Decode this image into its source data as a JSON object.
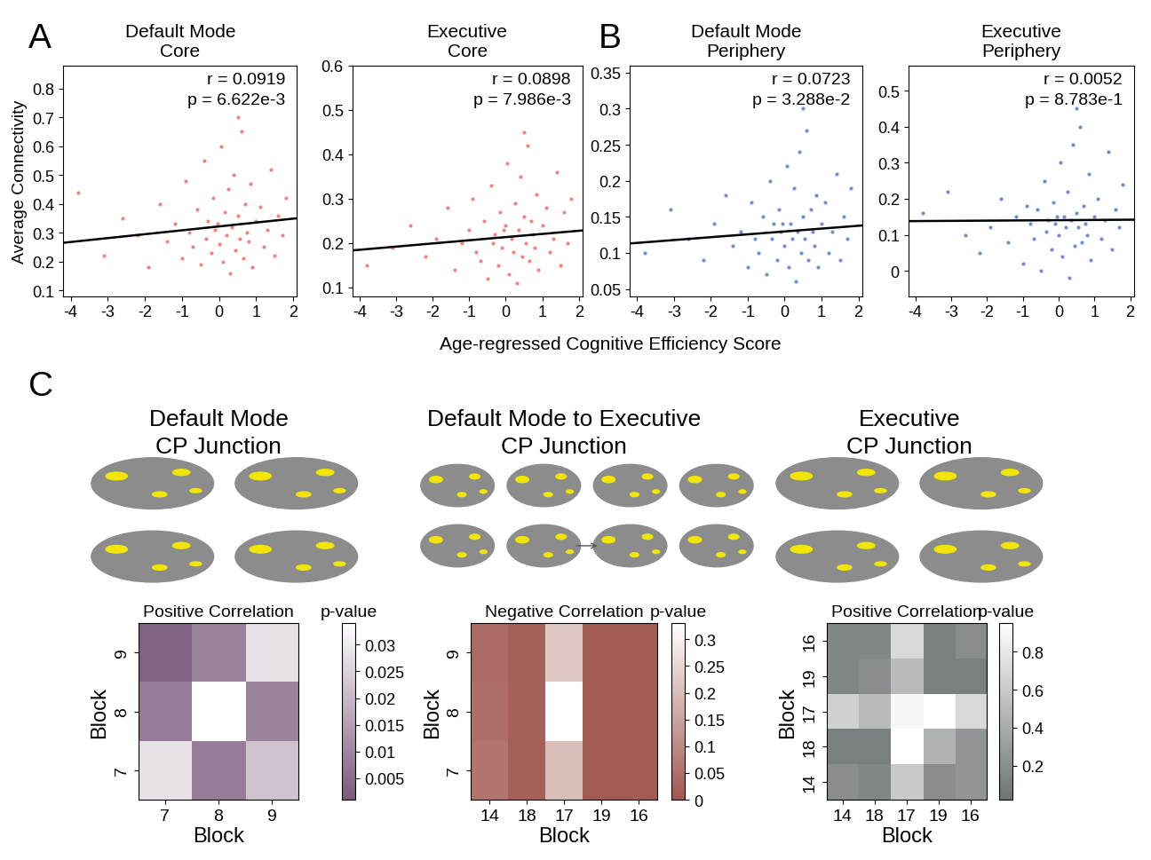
{
  "figure": {
    "xlabel": "Age-regressed Cognitive Efficiency Score"
  },
  "chart_data": [
    {
      "type": "scatter",
      "panel_label": "A",
      "title": "Default Mode\nCore",
      "ylabel": "Average Connectivity",
      "color": "#f4837d",
      "x": [
        -3.8,
        -3.1,
        -2.6,
        -2.2,
        -1.9,
        -1.6,
        -1.4,
        -1.2,
        -1.0,
        -0.9,
        -0.8,
        -0.7,
        -0.6,
        -0.5,
        -0.4,
        -0.35,
        -0.3,
        -0.2,
        -0.15,
        -0.1,
        0.0,
        0.05,
        0.1,
        0.15,
        0.2,
        0.25,
        0.3,
        0.35,
        0.4,
        0.45,
        0.5,
        0.55,
        0.6,
        0.65,
        0.7,
        0.75,
        0.8,
        0.85,
        0.9,
        1.0,
        1.1,
        1.2,
        1.3,
        1.4,
        1.5,
        1.6,
        1.7,
        1.8,
        -0.05,
        0.5
      ],
      "values": [
        0.44,
        0.22,
        0.35,
        0.29,
        0.18,
        0.4,
        0.27,
        0.33,
        0.21,
        0.48,
        0.3,
        0.25,
        0.38,
        0.19,
        0.55,
        0.28,
        0.34,
        0.23,
        0.42,
        0.31,
        0.26,
        0.6,
        0.2,
        0.37,
        0.29,
        0.45,
        0.16,
        0.32,
        0.5,
        0.24,
        0.36,
        0.28,
        0.65,
        0.21,
        0.4,
        0.3,
        0.27,
        0.47,
        0.18,
        0.34,
        0.39,
        0.25,
        0.31,
        0.52,
        0.22,
        0.36,
        0.29,
        0.42,
        0.33,
        0.7
      ],
      "fit": {
        "x": [
          -4.2,
          2.1
        ],
        "y": [
          0.265,
          0.35
        ]
      },
      "annotations": [
        "r = 0.0919",
        "p = 6.622e-3"
      ],
      "xlim": [
        -4.2,
        2.1
      ],
      "xticks": [
        -4,
        -3,
        -2,
        -1,
        0,
        1,
        2
      ],
      "ylim": [
        0.08,
        0.88
      ],
      "yticks": [
        0.1,
        0.2,
        0.3,
        0.4,
        0.5,
        0.6,
        0.7,
        0.8
      ]
    },
    {
      "type": "scatter",
      "title": "Executive\nCore",
      "color": "#f4837d",
      "x": [
        -3.8,
        -3.1,
        -2.6,
        -2.2,
        -1.9,
        -1.6,
        -1.4,
        -1.2,
        -1.0,
        -0.9,
        -0.8,
        -0.7,
        -0.6,
        -0.5,
        -0.4,
        -0.35,
        -0.3,
        -0.2,
        -0.15,
        -0.1,
        0.0,
        0.05,
        0.1,
        0.15,
        0.2,
        0.25,
        0.3,
        0.35,
        0.4,
        0.45,
        0.5,
        0.55,
        0.6,
        0.65,
        0.7,
        0.75,
        0.8,
        0.85,
        0.9,
        1.0,
        1.1,
        1.2,
        1.3,
        1.4,
        1.5,
        1.6,
        1.7,
        1.8,
        -0.05,
        0.5
      ],
      "values": [
        0.15,
        0.19,
        0.24,
        0.17,
        0.21,
        0.28,
        0.14,
        0.2,
        0.23,
        0.3,
        0.18,
        0.16,
        0.25,
        0.12,
        0.33,
        0.2,
        0.22,
        0.15,
        0.27,
        0.19,
        0.24,
        0.38,
        0.13,
        0.21,
        0.18,
        0.29,
        0.11,
        0.23,
        0.35,
        0.17,
        0.26,
        0.2,
        0.42,
        0.16,
        0.25,
        0.22,
        0.19,
        0.31,
        0.14,
        0.24,
        0.28,
        0.18,
        0.21,
        0.36,
        0.15,
        0.27,
        0.2,
        0.3,
        0.23,
        0.45
      ],
      "fit": {
        "x": [
          -4.2,
          2.1
        ],
        "y": [
          0.183,
          0.228
        ]
      },
      "annotations": [
        "r = 0.0898",
        "p = 7.986e-3"
      ],
      "xlim": [
        -4.2,
        2.1
      ],
      "xticks": [
        -4,
        -3,
        -2,
        -1,
        0,
        1,
        2
      ],
      "ylim": [
        0.08,
        0.6
      ],
      "yticks": [
        0.1,
        0.2,
        0.3,
        0.4,
        0.5,
        0.6
      ]
    },
    {
      "type": "scatter",
      "panel_label": "B",
      "title": "Default Mode\nPeriphery",
      "color": "#6f8fcf",
      "x": [
        -3.8,
        -3.1,
        -2.6,
        -2.2,
        -1.9,
        -1.6,
        -1.4,
        -1.2,
        -1.0,
        -0.9,
        -0.8,
        -0.7,
        -0.6,
        -0.5,
        -0.4,
        -0.35,
        -0.3,
        -0.2,
        -0.15,
        -0.1,
        0.0,
        0.05,
        0.1,
        0.15,
        0.2,
        0.25,
        0.3,
        0.35,
        0.4,
        0.45,
        0.5,
        0.55,
        0.6,
        0.65,
        0.7,
        0.75,
        0.8,
        0.85,
        0.9,
        1.0,
        1.1,
        1.2,
        1.3,
        1.4,
        1.5,
        1.6,
        1.7,
        1.8,
        -0.05,
        0.5
      ],
      "values": [
        0.1,
        0.16,
        0.12,
        0.09,
        0.14,
        0.18,
        0.11,
        0.13,
        0.08,
        0.17,
        0.12,
        0.1,
        0.15,
        0.07,
        0.2,
        0.12,
        0.14,
        0.09,
        0.16,
        0.13,
        0.11,
        0.22,
        0.08,
        0.14,
        0.12,
        0.19,
        0.06,
        0.13,
        0.24,
        0.1,
        0.15,
        0.12,
        0.27,
        0.09,
        0.16,
        0.13,
        0.11,
        0.18,
        0.08,
        0.14,
        0.17,
        0.1,
        0.13,
        0.21,
        0.09,
        0.15,
        0.12,
        0.19,
        0.14,
        0.3
      ],
      "fit": {
        "x": [
          -4.2,
          2.1
        ],
        "y": [
          0.113,
          0.138
        ]
      },
      "annotations": [
        "r = 0.0723",
        "p = 3.288e-2"
      ],
      "xlim": [
        -4.2,
        2.1
      ],
      "xticks": [
        -4,
        -3,
        -2,
        -1,
        0,
        1,
        2
      ],
      "ylim": [
        0.04,
        0.36
      ],
      "yticks": [
        0.05,
        0.1,
        0.15,
        0.2,
        0.25,
        0.3,
        0.35
      ]
    },
    {
      "type": "scatter",
      "title": "Executive\nPeriphery",
      "color": "#6f8fcf",
      "x": [
        -3.8,
        -3.1,
        -2.6,
        -2.2,
        -1.9,
        -1.6,
        -1.4,
        -1.2,
        -1.0,
        -0.9,
        -0.8,
        -0.7,
        -0.6,
        -0.5,
        -0.4,
        -0.35,
        -0.3,
        -0.2,
        -0.15,
        -0.1,
        0.0,
        0.05,
        0.1,
        0.15,
        0.2,
        0.25,
        0.3,
        0.35,
        0.4,
        0.45,
        0.5,
        0.55,
        0.6,
        0.65,
        0.7,
        0.75,
        0.8,
        0.85,
        0.9,
        1.0,
        1.1,
        1.2,
        1.3,
        1.4,
        1.5,
        1.6,
        1.7,
        1.8,
        -0.05,
        0.5
      ],
      "values": [
        0.16,
        0.22,
        0.1,
        0.05,
        0.12,
        0.2,
        0.08,
        0.15,
        0.02,
        0.18,
        0.13,
        0.09,
        0.17,
        0.0,
        0.25,
        0.11,
        0.14,
        0.06,
        0.19,
        0.13,
        0.1,
        0.3,
        0.04,
        0.15,
        0.12,
        0.22,
        -0.02,
        0.14,
        0.35,
        0.07,
        0.16,
        0.12,
        0.4,
        0.08,
        0.18,
        0.13,
        0.1,
        0.27,
        0.03,
        0.15,
        0.2,
        0.09,
        0.14,
        0.33,
        0.06,
        0.17,
        0.12,
        0.24,
        0.15,
        0.45
      ],
      "fit": {
        "x": [
          -4.2,
          2.1
        ],
        "y": [
          0.138,
          0.142
        ]
      },
      "annotations": [
        "r = 0.0052",
        "p = 8.783e-1"
      ],
      "xlim": [
        -4.2,
        2.1
      ],
      "xticks": [
        -4,
        -3,
        -2,
        -1,
        0,
        1,
        2
      ],
      "ylim": [
        -0.07,
        0.57
      ],
      "yticks": [
        0,
        0.1,
        0.2,
        0.3,
        0.4,
        0.5
      ]
    },
    {
      "type": "heatmap",
      "panel_label": "C",
      "title": "Default Mode\nCP Junction",
      "subtitle": "Positive Correlation",
      "xlabel": "Block",
      "ylabel": "Block",
      "color": "#7a5a7a",
      "x_categories": [
        "7",
        "8",
        "9"
      ],
      "y_categories": [
        "9",
        "8",
        "7"
      ],
      "cells": [
        [
          0.003,
          0.009,
          0.028
        ],
        [
          0.008,
          0.034,
          0.009
        ],
        [
          0.028,
          0.008,
          0.022
        ]
      ],
      "colorbar": {
        "label": "p-value",
        "range": [
          0.001,
          0.034
        ],
        "ticks": [
          0.005,
          0.01,
          0.015,
          0.02,
          0.025,
          0.03
        ]
      }
    },
    {
      "type": "heatmap",
      "title": "Default Mode to Executive\nCP Junction",
      "subtitle": "Negative Correlation",
      "xlabel": "Block",
      "ylabel": "Block",
      "color": "#a0574f",
      "x_categories": [
        "14",
        "18",
        "17",
        "19",
        "16"
      ],
      "y_categories": [
        "9",
        "8",
        "7"
      ],
      "cells": [
        [
          0.04,
          0.02,
          0.22,
          0.01,
          0.01
        ],
        [
          0.05,
          0.02,
          0.33,
          0.01,
          0.01
        ],
        [
          0.06,
          0.02,
          0.2,
          0.01,
          0.01
        ]
      ],
      "colorbar": {
        "label": "p-value",
        "range": [
          0,
          0.33
        ],
        "ticks": [
          0,
          0.05,
          0.1,
          0.15,
          0.2,
          0.25,
          0.3
        ]
      }
    },
    {
      "type": "heatmap",
      "title": "Executive\nCP Junction",
      "subtitle": "Positive Correlation",
      "xlabel": "Block",
      "ylabel": "Block",
      "color": "#6e7373",
      "x_categories": [
        "14",
        "18",
        "17",
        "19",
        "16"
      ],
      "y_categories": [
        "16",
        "19",
        "17",
        "18",
        "14"
      ],
      "cells": [
        [
          0.15,
          0.15,
          0.7,
          0.1,
          0.2
        ],
        [
          0.15,
          0.2,
          0.5,
          0.1,
          0.1
        ],
        [
          0.65,
          0.5,
          0.9,
          0.95,
          0.7
        ],
        [
          0.1,
          0.1,
          0.95,
          0.45,
          0.25
        ],
        [
          0.2,
          0.15,
          0.6,
          0.2,
          0.25
        ]
      ],
      "colorbar": {
        "label": "p-value",
        "range": [
          0.02,
          0.95
        ],
        "ticks": [
          0.2,
          0.4,
          0.6,
          0.8
        ]
      }
    }
  ]
}
